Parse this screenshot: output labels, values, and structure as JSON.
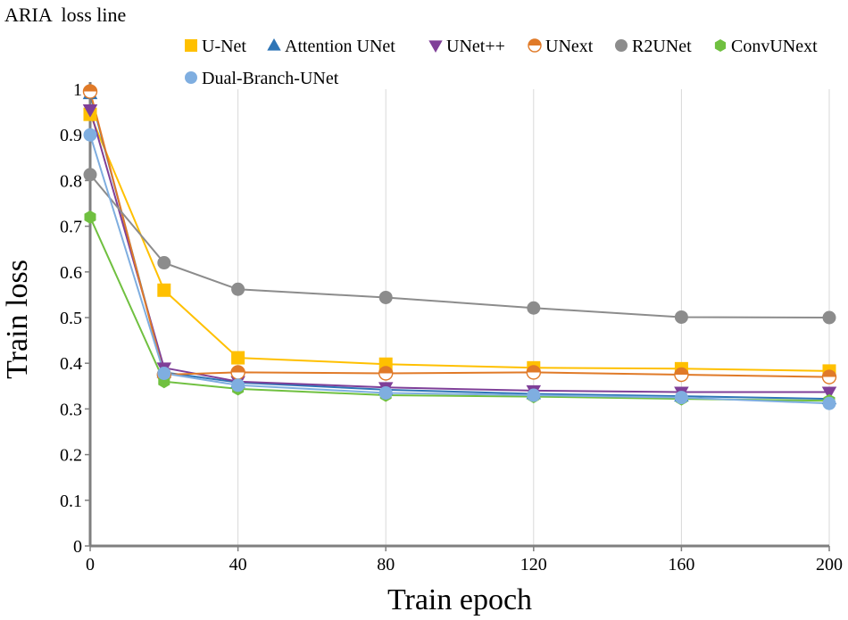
{
  "chart_data": {
    "type": "line",
    "title": "ARIA  loss line",
    "xlabel": "Train epoch",
    "ylabel": "Train loss",
    "x": [
      0,
      20,
      40,
      80,
      120,
      160,
      200
    ],
    "xticks": [
      "0",
      "40",
      "80",
      "120",
      "160",
      "200"
    ],
    "xtick_values": [
      0,
      40,
      80,
      120,
      160,
      200
    ],
    "yticks": [
      "0",
      "0.1",
      "0.2",
      "0.3",
      "0.4",
      "0.5",
      "0.6",
      "0.7",
      "0.8",
      "0.9",
      "1"
    ],
    "ytick_values": [
      0,
      0.1,
      0.2,
      0.3,
      0.4,
      0.5,
      0.6,
      0.7,
      0.8,
      0.9,
      1.0
    ],
    "xlim": [
      0,
      200
    ],
    "ylim": [
      0,
      1.0
    ],
    "grid": "vertical",
    "legend_position": "top",
    "series": [
      {
        "name": "U-Net",
        "color": "#FFC000",
        "marker": "square",
        "values": [
          0.945,
          0.56,
          0.412,
          0.398,
          0.39,
          0.388,
          0.383
        ]
      },
      {
        "name": "Attention UNet",
        "color": "#2E75B6",
        "marker": "triangle-up",
        "values": [
          0.99,
          0.38,
          0.358,
          0.342,
          0.333,
          0.328,
          0.322
        ]
      },
      {
        "name": "UNet++",
        "color": "#7F3F98",
        "marker": "triangle-down",
        "values": [
          0.955,
          0.39,
          0.36,
          0.347,
          0.34,
          0.337,
          0.337
        ]
      },
      {
        "name": "UNext",
        "color": "#E07A28",
        "marker": "half-circle",
        "values": [
          0.995,
          0.375,
          0.38,
          0.378,
          0.38,
          0.375,
          0.37
        ]
      },
      {
        "name": "R2UNet",
        "color": "#8C8C8C",
        "marker": "circle",
        "values": [
          0.813,
          0.62,
          0.562,
          0.544,
          0.521,
          0.501,
          0.5
        ]
      },
      {
        "name": "ConvUNext",
        "color": "#70C040",
        "marker": "hexagon",
        "values": [
          0.72,
          0.36,
          0.344,
          0.33,
          0.327,
          0.322,
          0.318
        ]
      },
      {
        "name": "Dual-Branch-UNet",
        "color": "#7FAEE0",
        "marker": "circle",
        "values": [
          0.9,
          0.378,
          0.352,
          0.335,
          0.33,
          0.325,
          0.312
        ]
      }
    ]
  }
}
